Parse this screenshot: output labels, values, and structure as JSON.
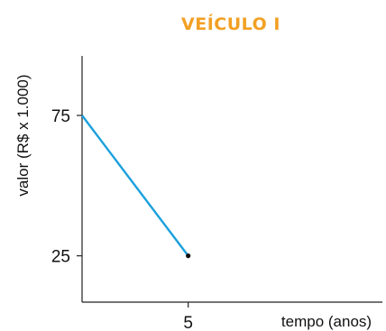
{
  "chart_data": {
    "type": "line",
    "title": "VEÍCULO I",
    "xlabel": "tempo (anos)",
    "ylabel": "valor (R$ x 1.000)",
    "x_ticks": [
      5
    ],
    "y_ticks": [
      25,
      75
    ],
    "xlim": [
      0,
      14.15
    ],
    "ylim": [
      8.5,
      96.2
    ],
    "series": [
      {
        "x": [
          0,
          5
        ],
        "y": [
          75,
          25
        ],
        "color": "#1aa0dc"
      }
    ],
    "markers": [
      {
        "x": 5,
        "y": 25
      }
    ],
    "grid": false
  }
}
